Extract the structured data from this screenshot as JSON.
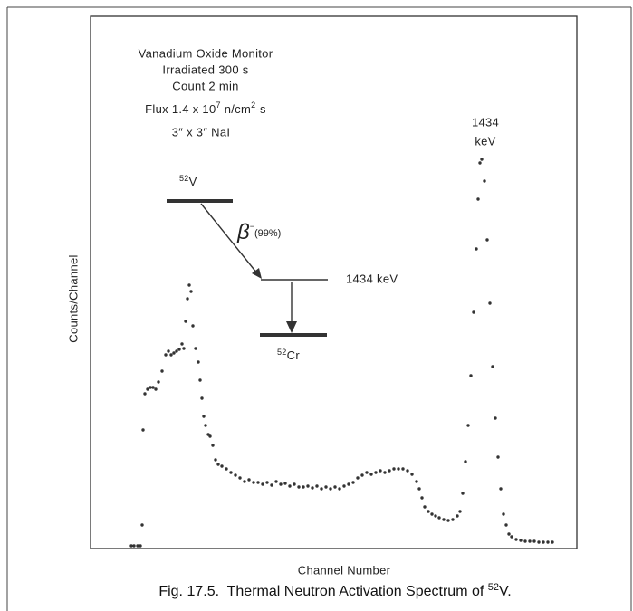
{
  "chart_data": {
    "type": "scatter",
    "xlabel": "Channel Number",
    "ylabel": "Counts/Channel",
    "caption": [
      "Fig. 17.5.  Thermal Neutron Activation Spectrum of ",
      "52",
      "V."
    ],
    "annotations": {
      "info_lines": [
        "Vanadium Oxide Monitor",
        "Irradiated 300 s",
        "Count 2 min"
      ],
      "flux": [
        "Flux 1.4 x 10",
        "7",
        " n/cm",
        "2",
        "-s"
      ],
      "detector": "3″ x 3″ NaI",
      "peak_label": [
        "1434",
        "keV"
      ],
      "parent": [
        "52",
        "V"
      ],
      "beta": [
        "β",
        "−",
        "(99%)"
      ],
      "level": "1434 keV",
      "daughter": [
        "52",
        "Cr"
      ]
    },
    "color": "#333333",
    "xlim": [
      0,
      537
    ],
    "ylim": [
      0,
      588
    ],
    "x": [
      45,
      48,
      52,
      55,
      57,
      58,
      60,
      63,
      66,
      69,
      72,
      75,
      79,
      83,
      86,
      89,
      92,
      95,
      98,
      101,
      103,
      105,
      107,
      109,
      111,
      113,
      116,
      119,
      121,
      123,
      125,
      127,
      130,
      132,
      135,
      138,
      141,
      145,
      150,
      155,
      160,
      165,
      170,
      175,
      180,
      185,
      190,
      195,
      200,
      205,
      210,
      215,
      220,
      225,
      230,
      235,
      240,
      245,
      250,
      255,
      260,
      265,
      270,
      275,
      280,
      285,
      290,
      295,
      300,
      305,
      310,
      315,
      320,
      325,
      330,
      335,
      340,
      345,
      350,
      355,
      360,
      363,
      366,
      369,
      373,
      377,
      381,
      385,
      390,
      395,
      400,
      405,
      408,
      411,
      414,
      417,
      420,
      423,
      426,
      428,
      430,
      432,
      435,
      438,
      441,
      444,
      447,
      450,
      453,
      456,
      459,
      462,
      465,
      470,
      475,
      480,
      485,
      490,
      495,
      500,
      505,
      510
    ],
    "values": [
      3,
      3,
      3,
      3,
      26,
      131,
      171,
      176,
      178,
      178,
      176,
      184,
      196,
      214,
      218,
      214,
      216,
      218,
      220,
      226,
      221,
      251,
      276,
      291,
      284,
      246,
      221,
      206,
      186,
      166,
      146,
      136,
      126,
      124,
      114,
      98,
      93,
      91,
      88,
      84,
      81,
      78,
      74,
      76,
      73,
      73,
      71,
      73,
      70,
      74,
      71,
      72,
      69,
      71,
      68,
      68,
      69,
      67,
      69,
      66,
      68,
      66,
      68,
      66,
      69,
      71,
      73,
      78,
      81,
      84,
      82,
      84,
      86,
      84,
      86,
      88,
      88,
      88,
      86,
      82,
      74,
      66,
      56,
      46,
      41,
      38,
      36,
      34,
      32,
      31,
      32,
      36,
      41,
      61,
      96,
      136,
      191,
      261,
      331,
      386,
      426,
      430,
      406,
      341,
      271,
      201,
      144,
      101,
      66,
      38,
      26,
      16,
      13,
      10,
      9,
      8,
      8,
      8,
      7,
      7,
      7,
      7
    ]
  }
}
